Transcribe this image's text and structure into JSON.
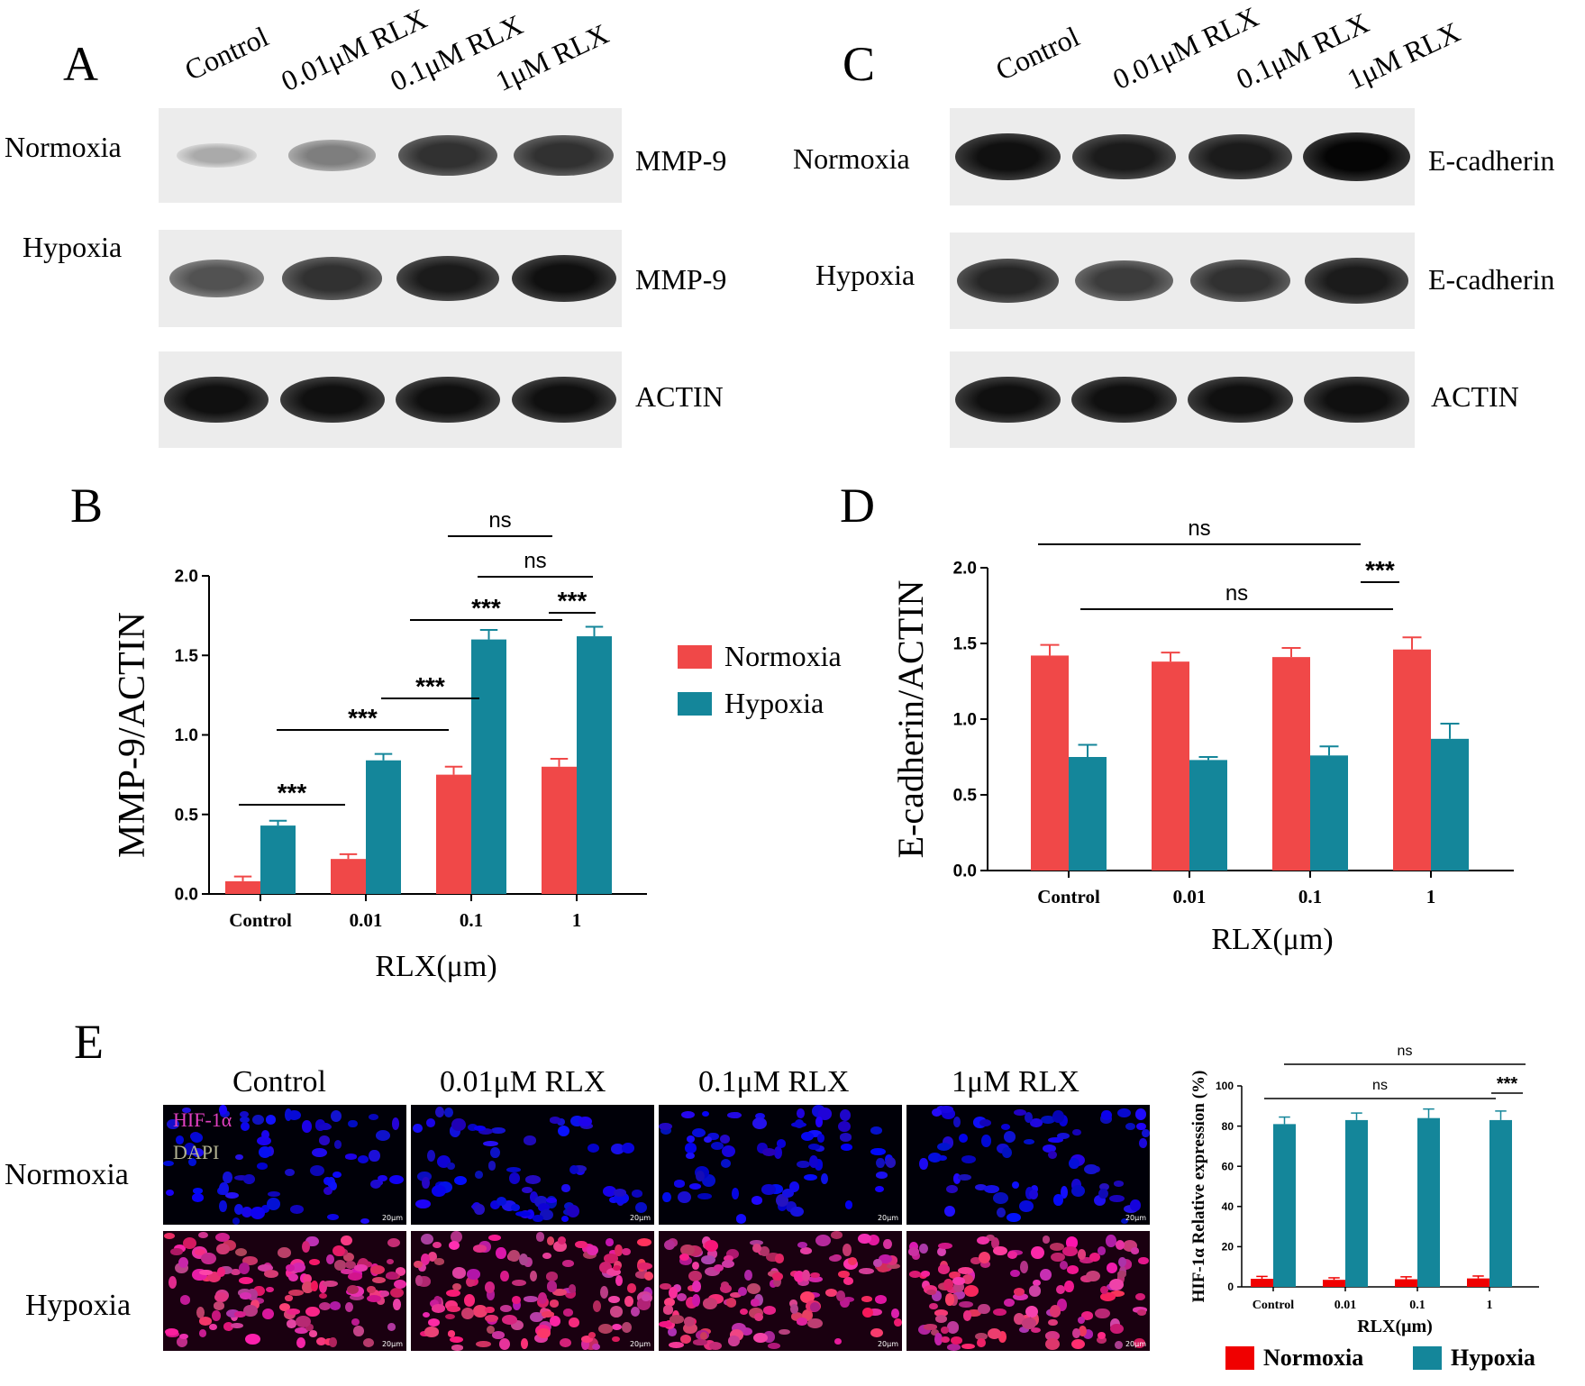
{
  "panels": {
    "A": "A",
    "B": "B",
    "C": "C",
    "D": "D",
    "E": "E"
  },
  "western": {
    "lanes": [
      "Control",
      "0.01μM RLX",
      "0.1μM RLX",
      "1μM RLX"
    ],
    "conditions": {
      "normoxia": "Normoxia",
      "hypoxia": "Hypoxia"
    },
    "left_proteins": [
      "MMP-9",
      "MMP-9",
      "ACTIN"
    ],
    "right_proteins": [
      "E-cadherin",
      "E-cadherin",
      "ACTIN"
    ],
    "left_intensity": {
      "normoxia": [
        0.25,
        0.45,
        0.8,
        0.8
      ],
      "hypoxia": [
        0.65,
        0.8,
        0.9,
        0.95
      ],
      "actin": [
        0.95,
        0.95,
        0.95,
        0.95
      ]
    },
    "right_intensity": {
      "normoxia": [
        0.95,
        0.9,
        0.9,
        1.0
      ],
      "hypoxia": [
        0.85,
        0.75,
        0.8,
        0.9
      ],
      "actin": [
        0.95,
        0.95,
        0.95,
        0.95
      ]
    }
  },
  "chart_data": [
    {
      "id": "B",
      "type": "bar",
      "categories": [
        "Control",
        "0.01",
        "0.1",
        "1"
      ],
      "xlabel": "RLX(μm)",
      "ylabel": "MMP-9/ACTIN",
      "ylim": [
        0,
        2.0
      ],
      "yticks": [
        "0.0",
        "0.5",
        "1.0",
        "1.5",
        "2.0"
      ],
      "series": [
        {
          "name": "Normoxia",
          "color": "#f04848",
          "values": [
            0.08,
            0.22,
            0.75,
            0.8
          ],
          "errors": [
            0.03,
            0.03,
            0.05,
            0.05
          ]
        },
        {
          "name": "Hypoxia",
          "color": "#14869a",
          "values": [
            0.43,
            0.84,
            1.6,
            1.62
          ],
          "errors": [
            0.03,
            0.04,
            0.06,
            0.06
          ]
        }
      ],
      "legend": "right",
      "annotations": [
        {
          "text": "***",
          "from": [
            0,
            0
          ],
          "to": [
            1,
            0
          ]
        },
        {
          "text": "***",
          "from": [
            0,
            1
          ],
          "to": [
            1,
            1
          ]
        },
        {
          "text": "***",
          "from": [
            1,
            0
          ],
          "to": [
            2,
            0
          ]
        },
        {
          "text": "***",
          "from": [
            1,
            1
          ],
          "to": [
            2,
            1
          ]
        },
        {
          "text": "***",
          "from": [
            3,
            0
          ],
          "to": [
            3,
            1
          ]
        },
        {
          "text": "ns",
          "from": [
            2,
            0
          ],
          "to": [
            3,
            0
          ]
        },
        {
          "text": "ns",
          "from": [
            2,
            1
          ],
          "to": [
            3,
            1
          ]
        }
      ]
    },
    {
      "id": "D",
      "type": "bar",
      "categories": [
        "Control",
        "0.01",
        "0.1",
        "1"
      ],
      "xlabel": "RLX(μm)",
      "ylabel": "E-cadherin/ACTIN",
      "ylim": [
        0,
        2.0
      ],
      "yticks": [
        "0.0",
        "0.5",
        "1.0",
        "1.5",
        "2.0"
      ],
      "series": [
        {
          "name": "Normoxia",
          "color": "#f04848",
          "values": [
            1.42,
            1.38,
            1.41,
            1.46
          ],
          "errors": [
            0.07,
            0.06,
            0.06,
            0.08
          ]
        },
        {
          "name": "Hypoxia",
          "color": "#14869a",
          "values": [
            0.75,
            0.73,
            0.76,
            0.87
          ],
          "errors": [
            0.08,
            0.02,
            0.06,
            0.1
          ]
        }
      ],
      "annotations": [
        {
          "text": "ns",
          "from": [
            0,
            0
          ],
          "to": [
            3,
            0
          ]
        },
        {
          "text": "***",
          "from": [
            3,
            0
          ],
          "to": [
            3,
            1
          ]
        },
        {
          "text": "ns",
          "from": [
            0,
            1
          ],
          "to": [
            3,
            1
          ]
        }
      ]
    },
    {
      "id": "E",
      "type": "bar",
      "categories": [
        "Control",
        "0.01",
        "0.1",
        "1"
      ],
      "xlabel": "RLX(μm)",
      "ylabel": "HIF-1α Relative expression (%)",
      "ylim": [
        0,
        100
      ],
      "yticks": [
        "0",
        "20",
        "40",
        "60",
        "80",
        "100"
      ],
      "series": [
        {
          "name": "Normoxia",
          "color": "#f00000",
          "values": [
            4,
            3.5,
            3.8,
            4.2
          ],
          "errors": [
            1.2,
            1.0,
            1.2,
            1.2
          ]
        },
        {
          "name": "Hypoxia",
          "color": "#14869a",
          "values": [
            81,
            83,
            84,
            83
          ],
          "errors": [
            3.5,
            3.5,
            4.5,
            4.5
          ]
        }
      ],
      "annotations": [
        {
          "text": "ns",
          "from": [
            0,
            1
          ],
          "to": [
            3,
            1
          ]
        },
        {
          "text": "***",
          "from": [
            3,
            0
          ],
          "to": [
            3,
            1
          ]
        },
        {
          "text": "ns",
          "from": [
            0,
            0
          ],
          "to": [
            3,
            0
          ]
        }
      ]
    }
  ],
  "micro": {
    "columns": [
      "Control",
      "0.01μM RLX",
      "0.1μM RLX",
      "1μM RLX"
    ],
    "rows": [
      "Normoxia",
      "Hypoxia"
    ],
    "stains": [
      "HIF-1α",
      "DAPI"
    ],
    "scale": "20μm"
  }
}
